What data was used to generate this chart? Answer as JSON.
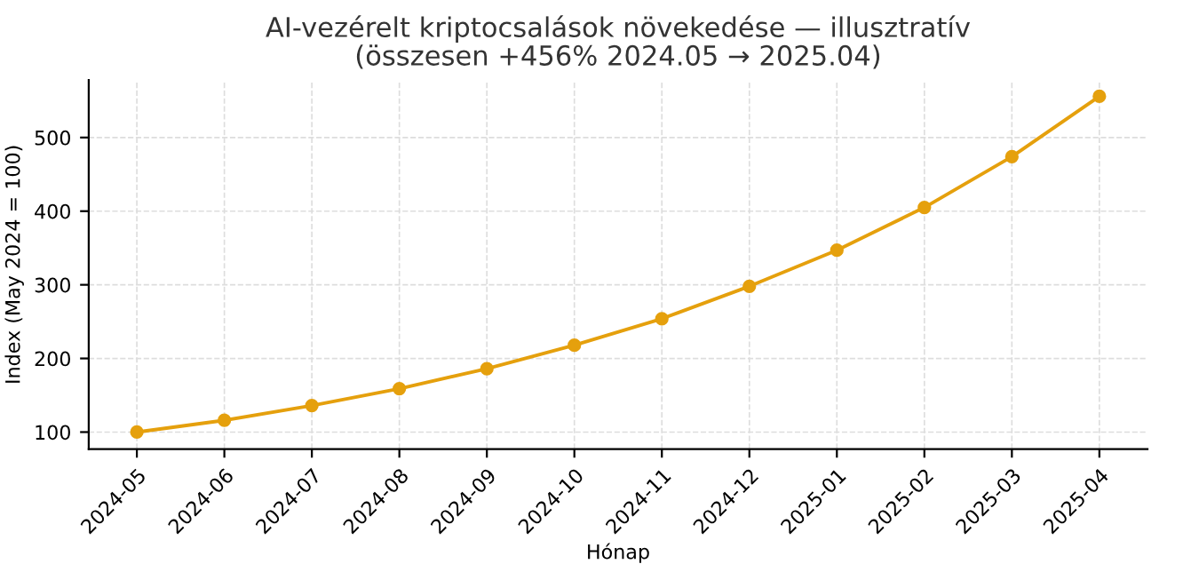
{
  "chart_data": {
    "type": "line",
    "title": "AI-vezérelt kriptocsalások növekedése — illusztratív\n(összesen +456% 2024.05 → 2025.04)",
    "xlabel": "Hónap",
    "ylabel": "Index (May 2024 = 100)",
    "categories": [
      "2024-05",
      "2024-06",
      "2024-07",
      "2024-08",
      "2024-09",
      "2024-10",
      "2024-11",
      "2024-12",
      "2025-01",
      "2025-02",
      "2025-03",
      "2025-04"
    ],
    "series": [
      {
        "color": "#e5a00d",
        "values": [
          100,
          116,
          136,
          159,
          186,
          218,
          254,
          298,
          347,
          405,
          474,
          556
        ]
      }
    ],
    "ylim": [
      77,
      578
    ],
    "yticks": [
      100,
      200,
      300,
      400,
      500
    ],
    "grid": true,
    "marker": "circle",
    "line_style": "solid"
  }
}
